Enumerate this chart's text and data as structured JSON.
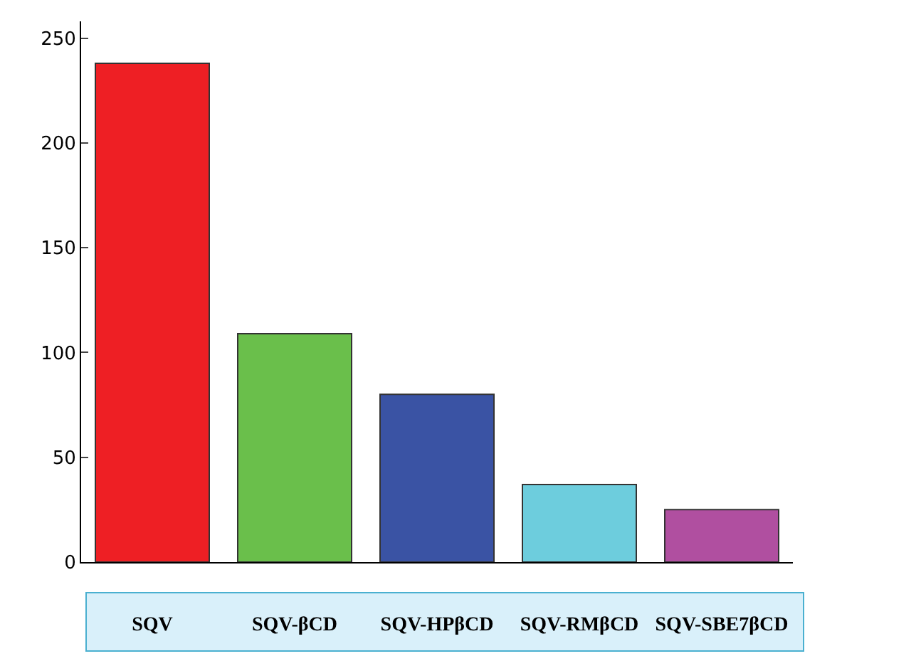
{
  "chart_data": {
    "type": "bar",
    "categories": [
      "SQV",
      "SQV-βCD",
      "SQV-HPβCD",
      "SQV-RMβCD",
      "SQV-SBE7βCD"
    ],
    "values": [
      238,
      109,
      80,
      37,
      25
    ],
    "colors": [
      "#ee1f24",
      "#6abf4b",
      "#3a53a4",
      "#6dcddd",
      "#b04fa0"
    ],
    "ylim": [
      0,
      258
    ],
    "yticks": [
      0,
      50,
      100,
      150,
      200,
      250
    ],
    "grid": false
  }
}
